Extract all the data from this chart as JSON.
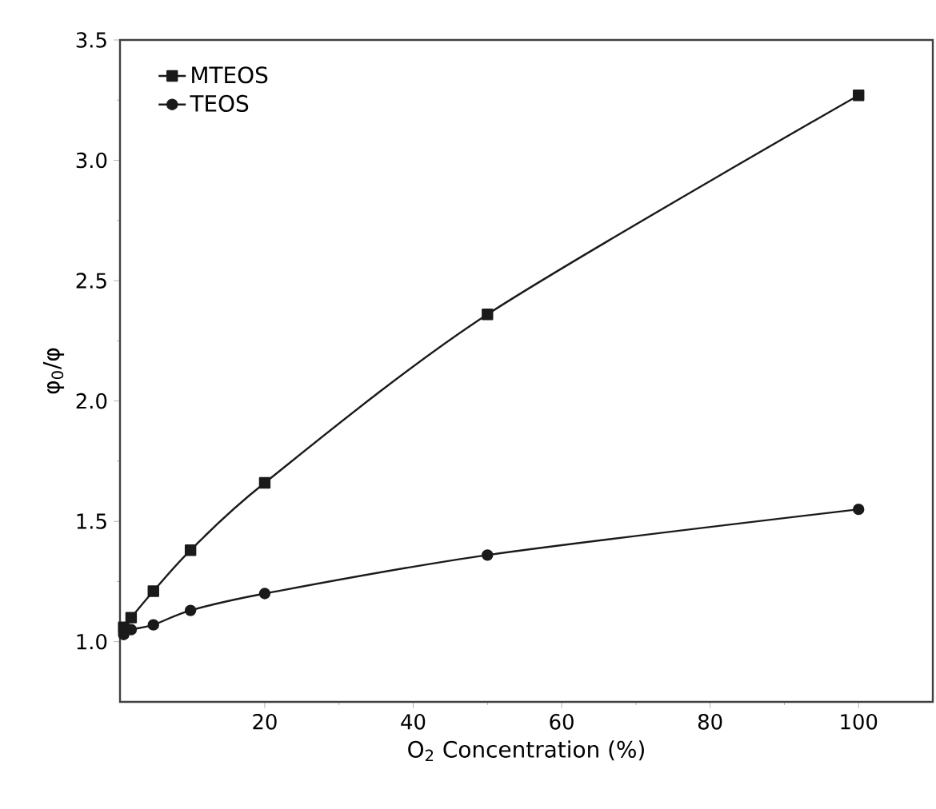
{
  "chart_data": {
    "type": "line",
    "xlabel": "O$_{2}$ Concentration (%)",
    "ylabel": "φ$_{0}$/φ",
    "xlim": [
      0.5,
      110
    ],
    "ylim": [
      0.75,
      3.5
    ],
    "xticks": [
      20,
      40,
      60,
      80,
      100
    ],
    "yticks": [
      {
        "value": 1.0,
        "label": "1.0"
      },
      {
        "value": 1.5,
        "label": "1.5"
      },
      {
        "value": 2.0,
        "label": "2.0"
      },
      {
        "value": 2.5,
        "label": "2.5"
      },
      {
        "value": 3.0,
        "label": "3.0"
      },
      {
        "value": 3.5,
        "label": "3.5"
      }
    ],
    "grid": false,
    "legend": "top left",
    "line_style": "solid",
    "series": [
      {
        "name": "MTEOS",
        "color": "#1a1a1a",
        "marker": "square",
        "x": [
          1,
          2,
          5,
          10,
          20,
          50,
          100
        ],
        "values": [
          1.06,
          1.1,
          1.21,
          1.38,
          1.66,
          2.36,
          3.27
        ]
      },
      {
        "name": "TEOS",
        "color": "#1a1a1a",
        "marker": "circle",
        "x": [
          1,
          2,
          5,
          10,
          20,
          50,
          100
        ],
        "values": [
          1.03,
          1.05,
          1.07,
          1.13,
          1.2,
          1.36,
          1.55
        ]
      }
    ]
  }
}
